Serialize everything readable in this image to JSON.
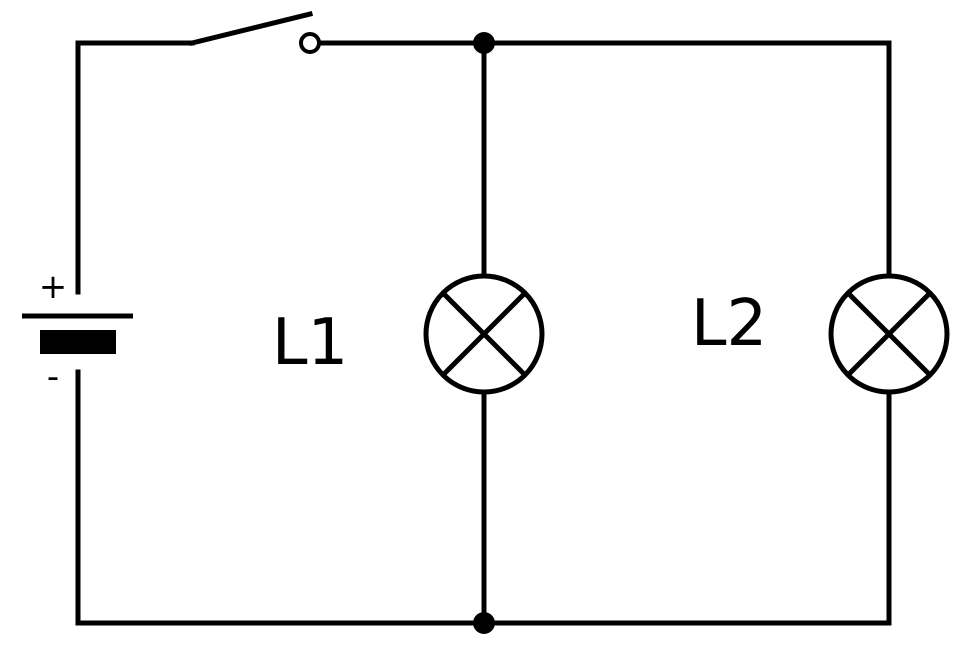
{
  "diagram": {
    "type": "circuit-schematic",
    "colors": {
      "stroke": "#000000",
      "background": "#ffffff"
    },
    "battery": {
      "icon": "battery-cell-icon",
      "positive_label": "+",
      "negative_label": "-"
    },
    "switch": {
      "icon": "open-switch-icon",
      "state": "open"
    },
    "lamps": [
      {
        "id": "lamp-1",
        "label": "L1",
        "icon": "lamp-icon"
      },
      {
        "id": "lamp-2",
        "label": "L2",
        "icon": "lamp-icon"
      }
    ],
    "junctions": [
      "top-junction",
      "bottom-junction"
    ],
    "connection": "parallel"
  }
}
